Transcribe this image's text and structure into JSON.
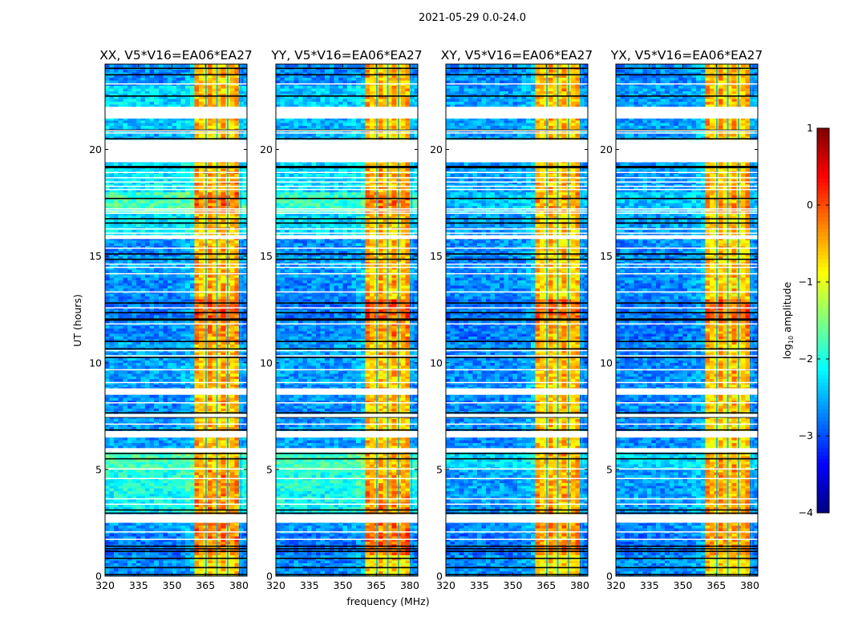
{
  "chart_data": {
    "type": "heatmap",
    "suptitle": "2021-05-29 0.0-24.0",
    "xlabel": "frequency (MHz)",
    "ylabel": "UT (hours)",
    "xlim": [
      320,
      383.6
    ],
    "ylim": [
      0,
      24
    ],
    "xticks": [
      320,
      335,
      350,
      365,
      380
    ],
    "xtick_labels": [
      "320",
      "335",
      "350",
      "365",
      "380"
    ],
    "yticks": [
      0,
      5,
      10,
      15,
      20
    ],
    "ytick_labels": [
      "0",
      "5",
      "10",
      "15",
      "20"
    ],
    "band_mhz": [
      360.5,
      380.5
    ],
    "flagged_channels_mhz": [
      [
        364.9,
        365.6
      ],
      [
        369.8,
        370.5
      ],
      [
        374.6,
        375.3
      ],
      [
        380.5,
        381.2
      ]
    ],
    "flagged_time_ranges_h": [
      [
        21.45,
        22.0
      ],
      [
        19.4,
        20.45
      ],
      [
        20.75,
        20.8
      ],
      [
        20.85,
        20.9
      ],
      [
        18.9,
        18.95
      ],
      [
        18.65,
        18.7
      ],
      [
        18.45,
        18.5
      ],
      [
        18.25,
        18.3
      ],
      [
        18.1,
        18.15
      ],
      [
        17.2,
        17.24
      ],
      [
        17.1,
        17.14
      ],
      [
        17.0,
        17.04
      ],
      [
        16.25,
        16.3
      ],
      [
        16.05,
        16.1
      ],
      [
        15.8,
        15.98
      ],
      [
        15.35,
        15.4
      ],
      [
        14.6,
        14.65
      ],
      [
        14.45,
        14.5
      ],
      [
        14.15,
        14.2
      ],
      [
        13.3,
        13.35
      ],
      [
        12.55,
        12.6
      ],
      [
        11.8,
        11.85
      ],
      [
        10.55,
        10.6
      ],
      [
        10.3,
        10.35
      ],
      [
        9.65,
        9.7
      ],
      [
        9.05,
        9.1
      ],
      [
        8.5,
        8.8
      ],
      [
        8.1,
        8.15
      ],
      [
        7.45,
        7.6
      ],
      [
        7.1,
        7.15
      ],
      [
        6.5,
        6.8
      ],
      [
        5.8,
        6.0
      ],
      [
        5.0,
        5.05
      ],
      [
        4.55,
        4.6
      ],
      [
        3.6,
        3.65
      ],
      [
        3.35,
        3.4
      ],
      [
        2.5,
        2.9
      ],
      [
        2.05,
        2.1
      ],
      [
        1.7,
        1.75
      ],
      [
        23.05,
        23.1
      ]
    ],
    "zero_amplitude_times_h": [
      23.8,
      23.5,
      22.5,
      20.9,
      20.5,
      19.2,
      19.15,
      17.7,
      16.75,
      16.55,
      15.1,
      14.85,
      12.8,
      12.35,
      12.05,
      12.0,
      11.0,
      10.65,
      10.25,
      7.65,
      7.45,
      6.85,
      5.75,
      5.5,
      3.1,
      2.95,
      1.4,
      1.28,
      1.16,
      0.83,
      0.4,
      0.07
    ],
    "hour_bins": [
      0,
      1,
      2,
      3,
      4,
      5,
      6,
      7,
      8,
      9,
      10,
      11,
      12,
      13,
      14,
      15,
      16,
      17,
      18,
      19,
      20,
      21,
      22,
      23
    ],
    "panels": [
      {
        "title": "XX, V5*V16=EA06*EA27",
        "off_band_log10": [
          -2.7,
          -2.8,
          -2.6,
          -2.1,
          -2.0,
          -1.8,
          -2.6,
          -2.7,
          -2.7,
          -2.6,
          -2.6,
          -2.7,
          -2.8,
          -2.7,
          -2.6,
          -2.7,
          -2.2,
          -1.8,
          -2.2,
          -2.3,
          -2.5,
          -2.4,
          -2.3,
          -2.7
        ],
        "in_band_log10": [
          -0.8,
          -0.3,
          -0.3,
          -0.4,
          -0.4,
          -0.6,
          -0.6,
          -0.7,
          -0.6,
          -0.6,
          -0.6,
          -0.4,
          -0.1,
          -0.6,
          -0.6,
          -0.6,
          -0.6,
          -0.3,
          -0.5,
          -0.6,
          -0.7,
          -0.6,
          -0.6,
          -0.6
        ]
      },
      {
        "title": "YY, V5*V16=EA06*EA27",
        "off_band_log10": [
          -2.7,
          -2.8,
          -2.6,
          -2.1,
          -2.0,
          -1.8,
          -2.6,
          -2.7,
          -2.7,
          -2.6,
          -2.6,
          -2.7,
          -2.8,
          -2.7,
          -2.6,
          -2.7,
          -2.3,
          -1.9,
          -2.3,
          -2.3,
          -2.5,
          -2.5,
          -2.4,
          -2.7
        ],
        "in_band_log10": [
          -0.8,
          -0.15,
          -0.3,
          -0.4,
          -0.5,
          -0.6,
          -0.6,
          -0.7,
          -0.6,
          -0.6,
          -0.6,
          -0.4,
          -0.05,
          -0.6,
          -0.6,
          -0.6,
          -0.6,
          -0.3,
          -0.5,
          -0.6,
          -0.7,
          -0.6,
          -0.6,
          -0.6
        ]
      },
      {
        "title": "XY, V5*V16=EA06*EA27",
        "off_band_log10": [
          -2.7,
          -2.8,
          -2.7,
          -2.6,
          -2.6,
          -2.3,
          -2.7,
          -2.7,
          -2.7,
          -2.7,
          -2.7,
          -2.8,
          -2.8,
          -2.7,
          -2.7,
          -2.7,
          -2.6,
          -2.4,
          -2.6,
          -2.6,
          -2.6,
          -2.6,
          -2.6,
          -2.7
        ],
        "in_band_log10": [
          -0.8,
          -0.4,
          -0.4,
          -0.5,
          -0.5,
          -0.6,
          -0.7,
          -0.7,
          -0.7,
          -0.6,
          -0.6,
          -0.5,
          -0.2,
          -0.7,
          -0.7,
          -0.7,
          -0.7,
          -0.5,
          -0.6,
          -0.7,
          -0.7,
          -0.6,
          -0.6,
          -0.6
        ]
      },
      {
        "title": "YX, V5*V16=EA06*EA27",
        "off_band_log10": [
          -2.7,
          -2.8,
          -2.7,
          -2.6,
          -2.6,
          -2.3,
          -2.7,
          -2.7,
          -2.7,
          -2.7,
          -2.7,
          -2.8,
          -2.8,
          -2.7,
          -2.7,
          -2.7,
          -2.6,
          -2.4,
          -2.6,
          -2.6,
          -2.6,
          -2.6,
          -2.6,
          -2.7
        ],
        "in_band_log10": [
          -0.8,
          -0.4,
          -0.4,
          -0.5,
          -0.5,
          -0.6,
          -0.7,
          -0.7,
          -0.7,
          -0.6,
          -0.6,
          -0.5,
          -0.2,
          -0.7,
          -0.7,
          -0.7,
          -0.7,
          -0.5,
          -0.6,
          -0.7,
          -0.7,
          -0.6,
          -0.6,
          -0.6
        ]
      }
    ],
    "colorbar": {
      "label_prefix": "log",
      "label_sub": "10",
      "label_suffix": " amplitude",
      "range": [
        -4,
        1
      ],
      "ticks": [
        1,
        0,
        -1,
        -2,
        -3,
        -4
      ],
      "tick_labels": [
        "1",
        "0",
        "−1",
        "−2",
        "−3",
        "−4"
      ],
      "colormap": "jet"
    }
  }
}
